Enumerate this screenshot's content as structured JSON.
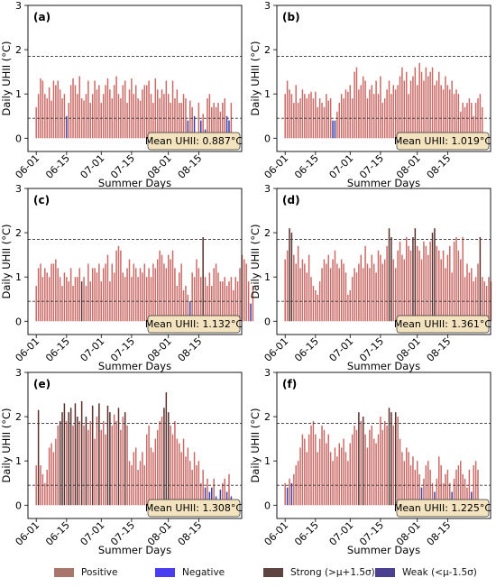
{
  "panels": [
    {
      "label": "(a)",
      "mean_text": "Mean UHII: 0.887°C",
      "ylabel": "Daily UHII (°C)",
      "xlabel": "Summer Days",
      "upper": 1.85,
      "lower": 0.45
    },
    {
      "label": "(b)",
      "mean_text": "Mean UHII: 1.019°C",
      "ylabel": "Daily UHII (°C)",
      "xlabel": "Summer Days",
      "upper": 1.85,
      "lower": 0.45
    },
    {
      "label": "(c)",
      "mean_text": "Mean UHII: 1.132°C",
      "ylabel": "Daily UHII (°C)",
      "xlabel": "Summer Days",
      "upper": 1.85,
      "lower": 0.45
    },
    {
      "label": "(d)",
      "mean_text": "Mean UHII: 1.361°C",
      "ylabel": "Daily UHII (°C)",
      "xlabel": "Summer Days",
      "upper": 1.85,
      "lower": 0.45
    },
    {
      "label": "(e)",
      "mean_text": "Mean UHII: 1.308°C",
      "ylabel": "Daily UHII (°C)",
      "xlabel": "Summer Days",
      "upper": 1.85,
      "lower": 0.45
    },
    {
      "label": "(f)",
      "mean_text": "Mean UHII: 1.225°C",
      "ylabel": "Daily UHII (°C)",
      "xlabel": "Summer Days",
      "upper": 1.85,
      "lower": 0.45
    }
  ],
  "legend": [
    {
      "key": "positive",
      "label": "Positive",
      "color": "#a9766c"
    },
    {
      "key": "negative",
      "label": "Negative",
      "color": "#4a3cf0"
    },
    {
      "key": "strong",
      "label": "Strong (>μ+1.5σ)",
      "color": "#5e4440"
    },
    {
      "key": "weak",
      "label": "Weak (<μ-1.5σ)",
      "color": "#4b3f8f"
    }
  ],
  "colors": {
    "bar_normal": "#c96a66",
    "bar_strong": "#5a2f2c",
    "bar_weak": "#3c3ca6",
    "bar_negative": "#3a2fd8",
    "threshold_line": "#333333",
    "mean_box_fill": "#f3e3bf"
  },
  "chart_data": [
    {
      "type": "bar",
      "panel": "a",
      "xlabel": "Summer Days",
      "ylabel": "Daily UHII (°C)",
      "ylim": [
        -0.3,
        3.0
      ],
      "yticks": [
        0,
        1,
        2,
        3
      ],
      "xtick_labels": [
        "06-01",
        "06-15",
        "07-01",
        "07-15",
        "08-01",
        "08-15"
      ],
      "start_date": "06-01",
      "thresholds": {
        "upper": 1.85,
        "lower": 0.45
      },
      "values": [
        0.7,
        1.0,
        1.35,
        1.3,
        1.0,
        0.9,
        1.15,
        0.85,
        1.3,
        1.2,
        1.3,
        1.1,
        0.9,
        1.0,
        0.5,
        0.8,
        1.2,
        1.35,
        1.2,
        1.0,
        1.4,
        0.9,
        0.85,
        1.0,
        1.3,
        0.8,
        1.0,
        1.3,
        1.1,
        1.2,
        0.8,
        1.0,
        1.2,
        1.35,
        1.1,
        0.9,
        1.2,
        1.4,
        1.0,
        0.9,
        1.2,
        1.3,
        0.8,
        1.1,
        1.35,
        1.0,
        1.2,
        0.9,
        0.85,
        1.1,
        1.2,
        1.2,
        1.3,
        1.0,
        0.8,
        1.35,
        1.1,
        0.9,
        1.1,
        1.0,
        1.3,
        1.0,
        0.8,
        1.3,
        0.9,
        1.1,
        0.8,
        0.8,
        1.0,
        0.9,
        0.4,
        0.85,
        0.7,
        0.5,
        0.1,
        0.8,
        0.4,
        0.55,
        0.2,
        0.9,
        1.0,
        0.7,
        0.8,
        0.7,
        0.8,
        0.6,
        0.8,
        0.9,
        0.5,
        0.4,
        0.8
      ],
      "categories_override": {
        "14": "weak",
        "70": "weak",
        "73": "weak",
        "74": "weak",
        "76": "weak",
        "78": "weak",
        "88": "weak",
        "89": "weak"
      }
    },
    {
      "type": "bar",
      "panel": "b",
      "xlabel": "Summer Days",
      "ylabel": "Daily UHII (°C)",
      "ylim": [
        -0.3,
        3.0
      ],
      "yticks": [
        0,
        1,
        2,
        3
      ],
      "xtick_labels": [
        "06-01",
        "06-15",
        "07-01",
        "07-15",
        "08-01",
        "08-15"
      ],
      "start_date": "06-01",
      "thresholds": {
        "upper": 1.85,
        "lower": 0.45
      },
      "values": [
        1.0,
        1.3,
        1.1,
        1.0,
        0.8,
        1.2,
        0.8,
        0.9,
        1.1,
        1.0,
        0.9,
        1.0,
        1.05,
        0.9,
        1.05,
        0.7,
        0.9,
        0.8,
        0.7,
        1.0,
        0.85,
        0.9,
        0.4,
        0.4,
        0.6,
        0.8,
        1.0,
        0.9,
        1.1,
        1.05,
        1.2,
        0.9,
        1.5,
        1.6,
        1.1,
        1.2,
        1.4,
        1.3,
        0.9,
        1.1,
        1.2,
        1.0,
        1.3,
        1.0,
        1.4,
        0.8,
        0.9,
        1.1,
        1.3,
        1.0,
        1.2,
        1.1,
        1.2,
        1.4,
        1.6,
        1.3,
        1.5,
        1.0,
        1.3,
        1.4,
        1.6,
        1.2,
        1.7,
        1.5,
        1.3,
        1.6,
        1.4,
        1.5,
        1.6,
        1.2,
        1.3,
        1.5,
        1.2,
        1.1,
        1.4,
        1.2,
        1.1,
        1.3,
        1.0,
        1.1,
        1.0,
        0.6,
        0.8,
        0.7,
        0.8,
        0.9,
        0.8,
        0.5,
        0.8,
        0.9,
        1.0,
        0.7
      ],
      "categories_override": {
        "22": "weak",
        "23": "weak"
      }
    },
    {
      "type": "bar",
      "panel": "c",
      "xlabel": "Summer Days",
      "ylabel": "Daily UHII (°C)",
      "ylim": [
        -0.3,
        3.0
      ],
      "yticks": [
        0,
        1,
        2,
        3
      ],
      "xtick_labels": [
        "06-01",
        "06-15",
        "07-01",
        "07-15",
        "08-01",
        "08-15"
      ],
      "start_date": "06-01",
      "thresholds": {
        "upper": 1.85,
        "lower": 0.45
      },
      "values": [
        0.8,
        1.2,
        1.3,
        1.0,
        1.2,
        1.1,
        1.0,
        1.3,
        1.3,
        1.4,
        1.2,
        1.0,
        0.8,
        1.1,
        1.0,
        0.9,
        1.2,
        0.8,
        1.0,
        1.0,
        1.2,
        0.9,
        1.0,
        0.8,
        1.3,
        0.9,
        1.2,
        1.2,
        1.1,
        1.3,
        0.9,
        1.2,
        1.3,
        1.5,
        0.9,
        1.3,
        1.1,
        1.6,
        1.7,
        1.6,
        1.1,
        1.0,
        1.2,
        1.4,
        1.0,
        1.3,
        1.2,
        1.0,
        1.2,
        1.1,
        1.3,
        1.0,
        1.2,
        1.0,
        1.3,
        1.2,
        1.4,
        1.6,
        1.5,
        1.3,
        1.2,
        1.5,
        1.4,
        1.6,
        1.2,
        0.8,
        1.1,
        1.3,
        0.7,
        0.8,
        0.6,
        0.45,
        1.1,
        1.0,
        1.4,
        1.2,
        1.0,
        1.9,
        1.0,
        0.8,
        1.1,
        0.8,
        1.2,
        1.3,
        1.1,
        0.9,
        0.9,
        1.0,
        0.8,
        0.9,
        1.0,
        0.7,
        1.0,
        0.9,
        1.2,
        1.5,
        1.4,
        1.3,
        0.9,
        0.4,
        0.8
      ],
      "categories_override": {
        "21": "strong",
        "71": "weak",
        "77": "strong",
        "99": "weak"
      }
    },
    {
      "type": "bar",
      "panel": "d",
      "xlabel": "Summer Days",
      "ylabel": "Daily UHII (°C)",
      "ylim": [
        -0.3,
        3.0
      ],
      "yticks": [
        0,
        1,
        2,
        3
      ],
      "xtick_labels": [
        "06-01",
        "06-15",
        "07-01",
        "07-15",
        "08-01",
        "08-15"
      ],
      "start_date": "06-01",
      "thresholds": {
        "upper": 1.85,
        "lower": 0.45
      },
      "values": [
        1.4,
        1.6,
        2.1,
        2.0,
        1.5,
        1.3,
        1.7,
        1.2,
        1.4,
        1.3,
        1.1,
        1.5,
        1.0,
        0.8,
        0.7,
        0.6,
        0.9,
        1.2,
        1.4,
        1.3,
        1.5,
        1.2,
        1.4,
        1.6,
        1.3,
        1.2,
        1.4,
        1.3,
        1.1,
        0.6,
        0.7,
        1.0,
        1.2,
        1.1,
        1.3,
        1.5,
        1.2,
        1.7,
        1.3,
        1.2,
        1.5,
        1.3,
        1.1,
        1.6,
        1.5,
        1.3,
        1.4,
        1.7,
        2.1,
        1.9,
        1.4,
        1.2,
        1.6,
        1.8,
        1.5,
        1.4,
        1.9,
        1.7,
        1.6,
        1.9,
        2.1,
        1.7,
        1.6,
        1.4,
        1.8,
        1.7,
        1.5,
        1.8,
        2.0,
        2.1,
        1.7,
        1.6,
        1.4,
        1.6,
        1.2,
        1.5,
        1.7,
        1.1,
        1.8,
        1.9,
        1.6,
        1.4,
        1.9,
        1.0,
        1.3,
        1.1,
        1.2,
        0.9,
        1.0,
        1.3,
        1.9,
        1.0,
        0.9,
        0.8,
        1.0,
        0.9
      ],
      "categories_override": {
        "2": "strong",
        "3": "strong",
        "48": "strong",
        "49": "strong",
        "59": "strong",
        "60": "strong",
        "68": "strong",
        "69": "strong",
        "90": "strong"
      }
    },
    {
      "type": "bar",
      "panel": "e",
      "xlabel": "Summer Days",
      "ylabel": "Daily UHII (°C)",
      "ylim": [
        -0.3,
        3.0
      ],
      "yticks": [
        0,
        1,
        2,
        3
      ],
      "xtick_labels": [
        "06-01",
        "06-15",
        "07-01",
        "07-15",
        "08-01",
        "08-15"
      ],
      "start_date": "06-01",
      "thresholds": {
        "upper": 1.85,
        "lower": 0.45
      },
      "values": [
        0.9,
        2.15,
        0.9,
        0.7,
        0.5,
        0.8,
        1.3,
        1.4,
        1.2,
        1.5,
        1.8,
        1.9,
        2.1,
        2.3,
        1.9,
        2.1,
        2.2,
        1.8,
        2.3,
        2.0,
        1.9,
        2.35,
        1.8,
        2.0,
        1.7,
        1.9,
        2.25,
        1.5,
        2.0,
        2.3,
        1.7,
        1.9,
        1.6,
        2.25,
        2.1,
        1.8,
        2.05,
        1.9,
        2.2,
        1.7,
        2.0,
        2.1,
        1.8,
        1.0,
        0.9,
        1.2,
        1.3,
        0.8,
        1.0,
        1.2,
        0.9,
        1.6,
        1.8,
        1.3,
        1.2,
        1.5,
        1.7,
        1.9,
        2.0,
        2.2,
        2.55,
        2.1,
        1.8,
        1.6,
        1.9,
        1.5,
        1.4,
        1.2,
        1.5,
        1.1,
        1.3,
        1.0,
        0.8,
        1.2,
        0.9,
        1.0,
        0.5,
        0.8,
        0.4,
        0.6,
        0.3,
        0.4,
        0.6,
        0.2,
        -0.2,
        0.35,
        0.5,
        0.6,
        0.3,
        0.7,
        0.2
      ],
      "categories_override": {
        "1": "strong",
        "11": "strong",
        "12": "strong",
        "13": "strong",
        "15": "strong",
        "16": "strong",
        "18": "strong",
        "19": "strong",
        "21": "strong",
        "23": "strong",
        "26": "strong",
        "29": "strong",
        "33": "strong",
        "34": "strong",
        "38": "strong",
        "41": "strong",
        "59": "strong",
        "60": "strong",
        "61": "strong",
        "78": "weak",
        "80": "weak",
        "81": "weak",
        "83": "weak",
        "84": "negative",
        "85": "weak",
        "88": "weak",
        "90": "weak"
      }
    },
    {
      "type": "bar",
      "panel": "f",
      "xlabel": "Summer Days",
      "ylabel": "Daily UHII (°C)",
      "ylim": [
        -0.3,
        3.0
      ],
      "yticks": [
        0,
        1,
        2,
        3
      ],
      "xtick_labels": [
        "06-01",
        "06-15",
        "07-01",
        "07-15",
        "08-01",
        "08-15"
      ],
      "start_date": "06-01",
      "thresholds": {
        "upper": 1.85,
        "lower": 0.45
      },
      "values": [
        0.5,
        0.4,
        0.6,
        0.5,
        0.7,
        0.9,
        1.0,
        1.3,
        1.6,
        1.5,
        1.2,
        1.6,
        1.8,
        1.9,
        1.6,
        1.2,
        1.5,
        1.8,
        1.7,
        1.4,
        1.6,
        1.2,
        1.0,
        1.3,
        1.1,
        1.4,
        1.3,
        1.5,
        1.2,
        1.0,
        1.4,
        1.6,
        1.8,
        1.7,
        2.1,
        1.9,
        2.0,
        1.6,
        1.3,
        1.7,
        1.8,
        1.5,
        1.4,
        1.6,
        2.0,
        1.7,
        1.9,
        1.8,
        2.2,
        2.1,
        1.8,
        2.1,
        2.0,
        1.5,
        1.2,
        1.0,
        1.3,
        1.2,
        0.9,
        1.1,
        0.8,
        1.0,
        0.7,
        0.4,
        0.6,
        0.9,
        1.0,
        0.8,
        0.5,
        0.3,
        0.6,
        1.1,
        0.9,
        0.5,
        0.7,
        0.8,
        0.5,
        0.3,
        0.6,
        0.8,
        0.9,
        1.0,
        0.7,
        0.6,
        0.4,
        0.8,
        0.3,
        0.9,
        1.0,
        0.8
      ],
      "categories_override": {
        "1": "weak",
        "3": "weak",
        "34": "strong",
        "36": "strong",
        "48": "strong",
        "49": "strong",
        "51": "strong",
        "63": "weak",
        "69": "weak",
        "77": "weak",
        "86": "weak"
      }
    }
  ]
}
